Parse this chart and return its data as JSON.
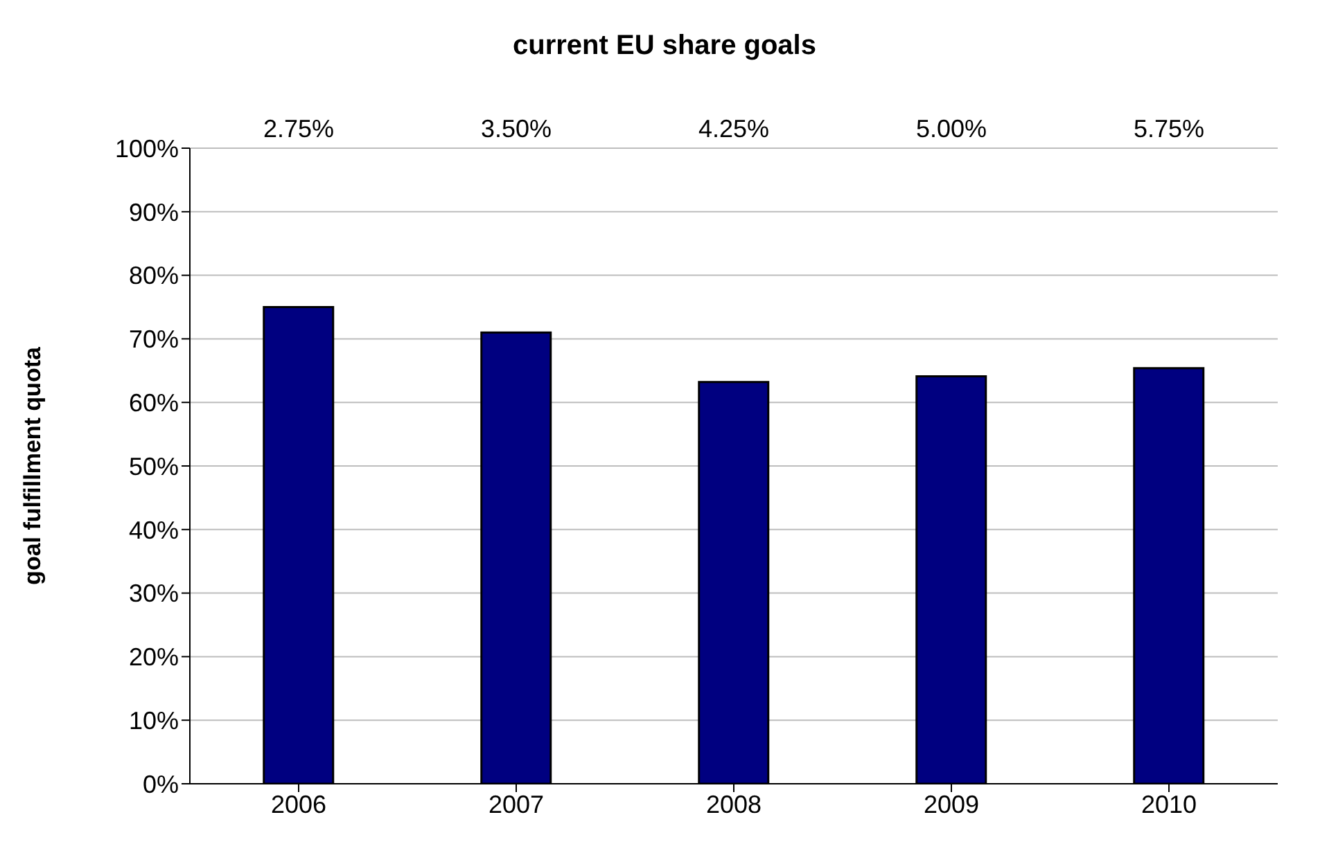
{
  "chart_data": {
    "type": "bar",
    "title": "current EU share goals",
    "ylabel": "goal fulfillment quota",
    "categories": [
      "2006",
      "2007",
      "2008",
      "2009",
      "2010"
    ],
    "values": [
      75,
      71,
      63.2,
      64.1,
      65.4
    ],
    "color": "#000080",
    "ylim": [
      0,
      100
    ],
    "yticks": [
      {
        "value": 0,
        "label": "0%"
      },
      {
        "value": 10,
        "label": "10%"
      },
      {
        "value": 20,
        "label": "20%"
      },
      {
        "value": 30,
        "label": "30%"
      },
      {
        "value": 40,
        "label": "40%"
      },
      {
        "value": 50,
        "label": "50%"
      },
      {
        "value": 60,
        "label": "60%"
      },
      {
        "value": 70,
        "label": "70%"
      },
      {
        "value": 80,
        "label": "80%"
      },
      {
        "value": 90,
        "label": "90%"
      },
      {
        "value": 100,
        "label": "100%"
      }
    ],
    "grid": "y",
    "legend": false,
    "annotations": [
      "2.75%",
      "3.50%",
      "4.25%",
      "5.00%",
      "5.75%"
    ]
  }
}
